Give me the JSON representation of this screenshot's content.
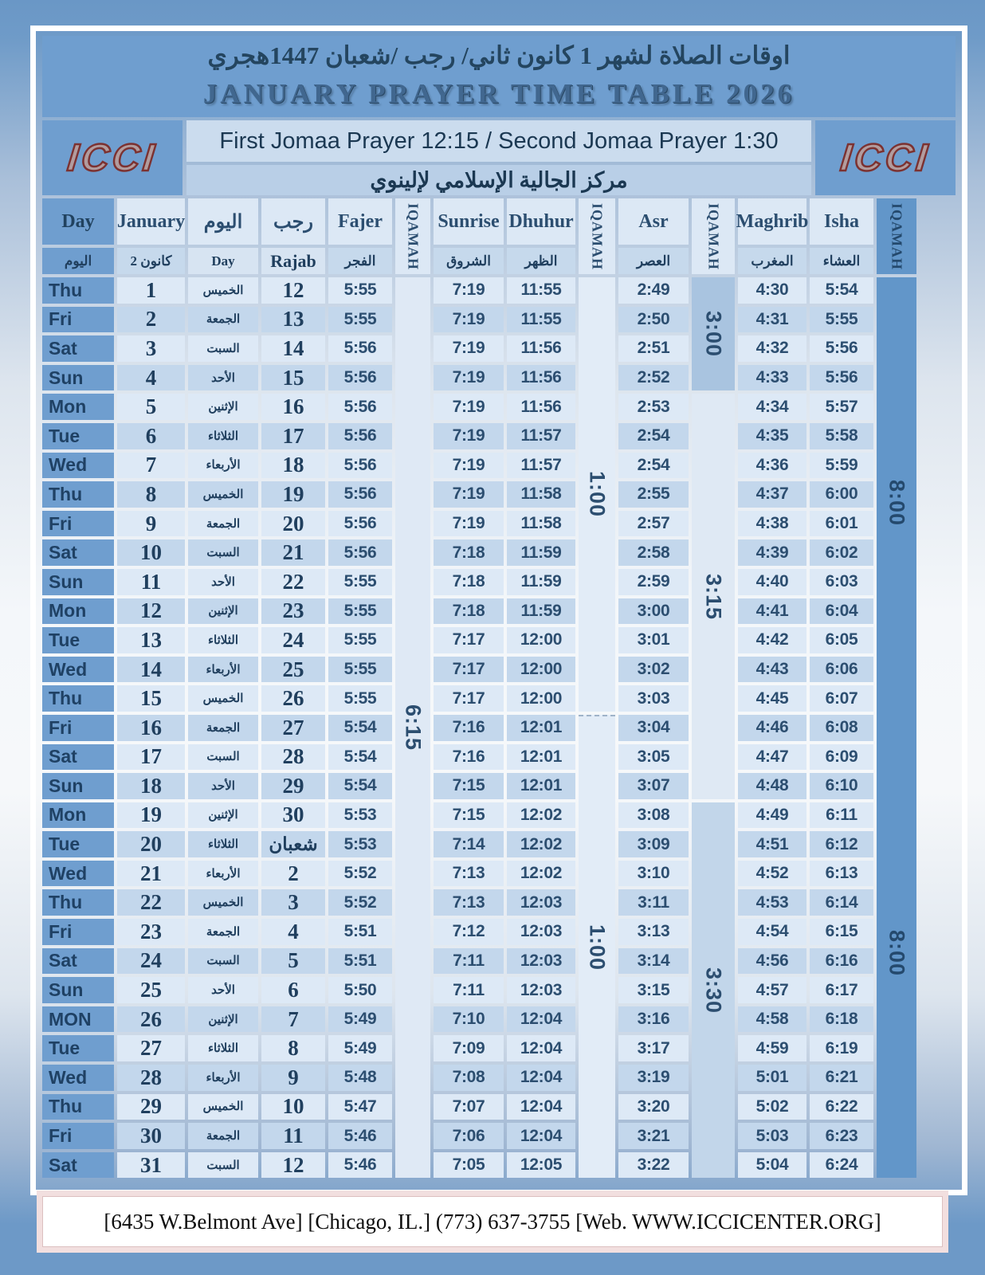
{
  "page": {
    "title_ar": "اوقات الصلاة لشهر 1  كانون ثاني/ رجب /شعبان 1447هجري",
    "title_en": "JANUARY PRAYER TIME TABLE  2026",
    "logo": "ICCI",
    "jomaa_line": "First Jomaa Prayer 12:15 /  Second Jomaa Prayer 1:30",
    "org_ar": "مركز الجالية الإسلامي لإلينوي",
    "footer": "[6435 W.Belmont Ave]  [Chicago, IL.] (773) 637-3755 [Web. WWW.ICCICENTER.ORG]"
  },
  "header": {
    "day_en": "Day",
    "day_ar": "اليوم",
    "january": "January",
    "kanun2": "كانون 2",
    "yawm_ar": "اليوم",
    "day2_en": "Day",
    "rajab_ar": "رجب",
    "rajab_en": "Rajab",
    "fajer_en": "Fajer",
    "fajer_ar": "الفجر",
    "iqamah": "IQAMAH",
    "sunrise_en": "Sunrise",
    "sunrise_ar": "الشروق",
    "dhuhur_en": "Dhuhur",
    "dhuhur_ar": "الظهر",
    "asr_en": "Asr",
    "asr_ar": "العصر",
    "maghrib_en": "Maghrib",
    "maghrib_ar": "المغرب",
    "isha_en": "Isha",
    "isha_ar": "العشاء"
  },
  "iqamah": {
    "fajer": {
      "sections": [
        {
          "label": "6:15",
          "rows": 31
        }
      ]
    },
    "dhuhur": {
      "sections": [
        {
          "label": "1:00",
          "rows": 15
        },
        {
          "label": "1:00",
          "rows": 16,
          "dash": true
        }
      ]
    },
    "asr": {
      "sections": [
        {
          "label": "3:00",
          "rows": 4
        },
        {
          "label": "3:15",
          "rows": 14
        },
        {
          "label": "3:30",
          "rows": 13
        }
      ]
    },
    "isha": {
      "rows": 31,
      "labels": [
        "8:00",
        "8:00"
      ]
    }
  },
  "rows": [
    [
      "Thu",
      "1",
      "الخميس",
      "12",
      "5:55",
      "7:19",
      "11:55",
      "2:49",
      "4:30",
      "5:54"
    ],
    [
      "Fri",
      "2",
      "الجمعة",
      "13",
      "5:55",
      "7:19",
      "11:55",
      "2:50",
      "4:31",
      "5:55"
    ],
    [
      "Sat",
      "3",
      "السبت",
      "14",
      "5:56",
      "7:19",
      "11:56",
      "2:51",
      "4:32",
      "5:56"
    ],
    [
      "Sun",
      "4",
      "الأحد",
      "15",
      "5:56",
      "7:19",
      "11:56",
      "2:52",
      "4:33",
      "5:56"
    ],
    [
      "Mon",
      "5",
      "الإثنين",
      "16",
      "5:56",
      "7:19",
      "11:56",
      "2:53",
      "4:34",
      "5:57"
    ],
    [
      "Tue",
      "6",
      "الثلاثاء",
      "17",
      "5:56",
      "7:19",
      "11:57",
      "2:54",
      "4:35",
      "5:58"
    ],
    [
      "Wed",
      "7",
      "الأربعاء",
      "18",
      "5:56",
      "7:19",
      "11:57",
      "2:54",
      "4:36",
      "5:59"
    ],
    [
      "Thu",
      "8",
      "الخميس",
      "19",
      "5:56",
      "7:19",
      "11:58",
      "2:55",
      "4:37",
      "6:00"
    ],
    [
      "Fri",
      "9",
      "الجمعة",
      "20",
      "5:56",
      "7:19",
      "11:58",
      "2:57",
      "4:38",
      "6:01"
    ],
    [
      "Sat",
      "10",
      "السبت",
      "21",
      "5:56",
      "7:18",
      "11:59",
      "2:58",
      "4:39",
      "6:02"
    ],
    [
      "Sun",
      "11",
      "الأحد",
      "22",
      "5:55",
      "7:18",
      "11:59",
      "2:59",
      "4:40",
      "6:03"
    ],
    [
      "Mon",
      "12",
      "الإثنين",
      "23",
      "5:55",
      "7:18",
      "11:59",
      "3:00",
      "4:41",
      "6:04"
    ],
    [
      "Tue",
      "13",
      "الثلاثاء",
      "24",
      "5:55",
      "7:17",
      "12:00",
      "3:01",
      "4:42",
      "6:05"
    ],
    [
      "Wed",
      "14",
      "الأربعاء",
      "25",
      "5:55",
      "7:17",
      "12:00",
      "3:02",
      "4:43",
      "6:06"
    ],
    [
      "Thu",
      "15",
      "الخميس",
      "26",
      "5:55",
      "7:17",
      "12:00",
      "3:03",
      "4:45",
      "6:07"
    ],
    [
      "Fri",
      "16",
      "الجمعة",
      "27",
      "5:54",
      "7:16",
      "12:01",
      "3:04",
      "4:46",
      "6:08"
    ],
    [
      "Sat",
      "17",
      "السبت",
      "28",
      "5:54",
      "7:16",
      "12:01",
      "3:05",
      "4:47",
      "6:09"
    ],
    [
      "Sun",
      "18",
      "الأحد",
      "29",
      "5:54",
      "7:15",
      "12:01",
      "3:07",
      "4:48",
      "6:10"
    ],
    [
      "Mon",
      "19",
      "الإثنين",
      "30",
      "5:53",
      "7:15",
      "12:02",
      "3:08",
      "4:49",
      "6:11"
    ],
    [
      "Tue",
      "20",
      "الثلاثاء",
      "شعبان",
      "5:53",
      "7:14",
      "12:02",
      "3:09",
      "4:51",
      "6:12"
    ],
    [
      "Wed",
      "21",
      "الأربعاء",
      "2",
      "5:52",
      "7:13",
      "12:02",
      "3:10",
      "4:52",
      "6:13"
    ],
    [
      "Thu",
      "22",
      "الخميس",
      "3",
      "5:52",
      "7:13",
      "12:03",
      "3:11",
      "4:53",
      "6:14"
    ],
    [
      "Fri",
      "23",
      "الجمعة",
      "4",
      "5:51",
      "7:12",
      "12:03",
      "3:13",
      "4:54",
      "6:15"
    ],
    [
      "Sat",
      "24",
      "السبت",
      "5",
      "5:51",
      "7:11",
      "12:03",
      "3:14",
      "4:56",
      "6:16"
    ],
    [
      "Sun",
      "25",
      "الأحد",
      "6",
      "5:50",
      "7:11",
      "12:03",
      "3:15",
      "4:57",
      "6:17"
    ],
    [
      "MON",
      "26",
      "الإثنين",
      "7",
      "5:49",
      "7:10",
      "12:04",
      "3:16",
      "4:58",
      "6:18"
    ],
    [
      "Tue",
      "27",
      "الثلاثاء",
      "8",
      "5:49",
      "7:09",
      "12:04",
      "3:17",
      "4:59",
      "6:19"
    ],
    [
      "Wed",
      "28",
      "الأربعاء",
      "9",
      "5:48",
      "7:08",
      "12:04",
      "3:19",
      "5:01",
      "6:21"
    ],
    [
      "Thu",
      "29",
      "الخميس",
      "10",
      "5:47",
      "7:07",
      "12:04",
      "3:20",
      "5:02",
      "6:22"
    ],
    [
      "Fri",
      "30",
      "الجمعة",
      "11",
      "5:46",
      "7:06",
      "12:04",
      "3:21",
      "5:03",
      "6:23"
    ],
    [
      "Sat",
      "31",
      "السبت",
      "12",
      "5:46",
      "7:05",
      "12:05",
      "3:22",
      "5:04",
      "6:24"
    ]
  ],
  "colors": {
    "band_blue": "#6f9ecf",
    "stripe_light": "#dde9f6",
    "stripe_dark": "#c3d7ec",
    "iq_fajer_bg": "#dfe9f5",
    "iq_dhuhur_bg": "#e2ecf7",
    "iq_asr_bgs": [
      "#a9c4e0",
      "#dfe9f4",
      "#c2d6ea"
    ],
    "iq_isha_bg": "#6296c9",
    "text_navy": "#2c4e70",
    "logo_fill": "#b29c9e",
    "logo_outline": "#7c3231",
    "footer_band": "#f2dfdf"
  }
}
